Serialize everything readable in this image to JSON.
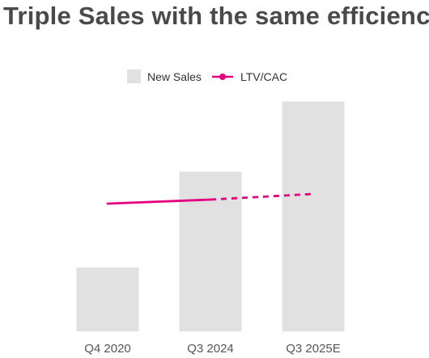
{
  "chart_data": {
    "type": "bar",
    "title": "Triple Sales with the same efficiency",
    "categories": [
      "Q4 2020",
      "Q3 2024",
      "Q3 2025E"
    ],
    "series": [
      {
        "name": "New Sales",
        "kind": "bar",
        "values": [
          1.0,
          2.5,
          3.6
        ],
        "color": "#e1e1e1"
      },
      {
        "name": "LTV/CAC",
        "kind": "line",
        "values": [
          2.0,
          2.05,
          2.12
        ],
        "projected_from_index": 1,
        "color": "#e5007e"
      }
    ],
    "legend_position": "top-center",
    "grid": false,
    "y_axis_visible": false
  }
}
